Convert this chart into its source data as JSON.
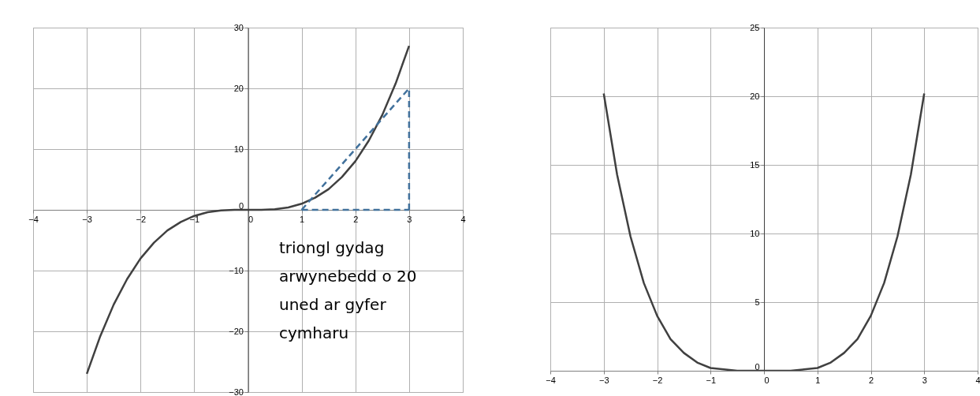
{
  "chart_data": [
    {
      "type": "line",
      "xlim": [
        -4,
        4
      ],
      "ylim": [
        -30,
        30
      ],
      "xticks": [
        -4,
        -3,
        -2,
        -1,
        0,
        1,
        2,
        3,
        4
      ],
      "yticks": [
        -30,
        -20,
        -10,
        0,
        10,
        20,
        30
      ],
      "grid": true,
      "series": [
        {
          "color": "#404040",
          "x": [
            -3,
            -2.75,
            -2.5,
            -2.25,
            -2,
            -1.75,
            -1.5,
            -1.25,
            -1,
            -0.75,
            -0.5,
            -0.25,
            0,
            0.25,
            0.5,
            0.75,
            1,
            1.25,
            1.5,
            1.75,
            2,
            2.25,
            2.5,
            2.75,
            3
          ],
          "values": [
            -27,
            -20.8,
            -15.6,
            -11.4,
            -8,
            -5.4,
            -3.4,
            -2,
            -1,
            -0.4,
            -0.1,
            0,
            0,
            0,
            0.1,
            0.4,
            1,
            2,
            3.4,
            5.4,
            8,
            11.4,
            15.6,
            20.8,
            27
          ]
        },
        {
          "color": "#41719c",
          "line_style": "dashed",
          "x": [
            1,
            3
          ],
          "values": [
            0,
            20
          ]
        },
        {
          "color": "#41719c",
          "line_style": "dashed",
          "x": [
            1,
            3
          ],
          "values": [
            0,
            0
          ]
        },
        {
          "color": "#41719c",
          "line_style": "dashed",
          "x": [
            3,
            3
          ],
          "values": [
            0,
            20
          ]
        }
      ],
      "annotations": [
        "triongl gydag arwynebedd o 20 uned ar gyfer cymharu"
      ]
    },
    {
      "type": "line",
      "xlim": [
        -4,
        4
      ],
      "ylim": [
        0,
        25
      ],
      "xticks": [
        -4,
        -3,
        -2,
        -1,
        0,
        1,
        2,
        3,
        4
      ],
      "yticks": [
        0,
        5,
        10,
        15,
        20,
        25
      ],
      "grid": true,
      "series": [
        {
          "color": "#404040",
          "x": [
            -3,
            -2.75,
            -2.5,
            -2.25,
            -2,
            -1.75,
            -1.5,
            -1.25,
            -1,
            -0.75,
            -0.5,
            -0.25,
            0,
            0.25,
            0.5,
            0.75,
            1,
            1.25,
            1.5,
            1.75,
            2,
            2.25,
            2.5,
            2.75,
            3
          ],
          "values": [
            20.2,
            14.3,
            9.8,
            6.4,
            4,
            2.3,
            1.3,
            0.6,
            0.2,
            0.1,
            0,
            0,
            0,
            0,
            0,
            0.1,
            0.2,
            0.6,
            1.3,
            2.3,
            4,
            6.4,
            9.8,
            14.3,
            20.2
          ]
        }
      ]
    }
  ]
}
